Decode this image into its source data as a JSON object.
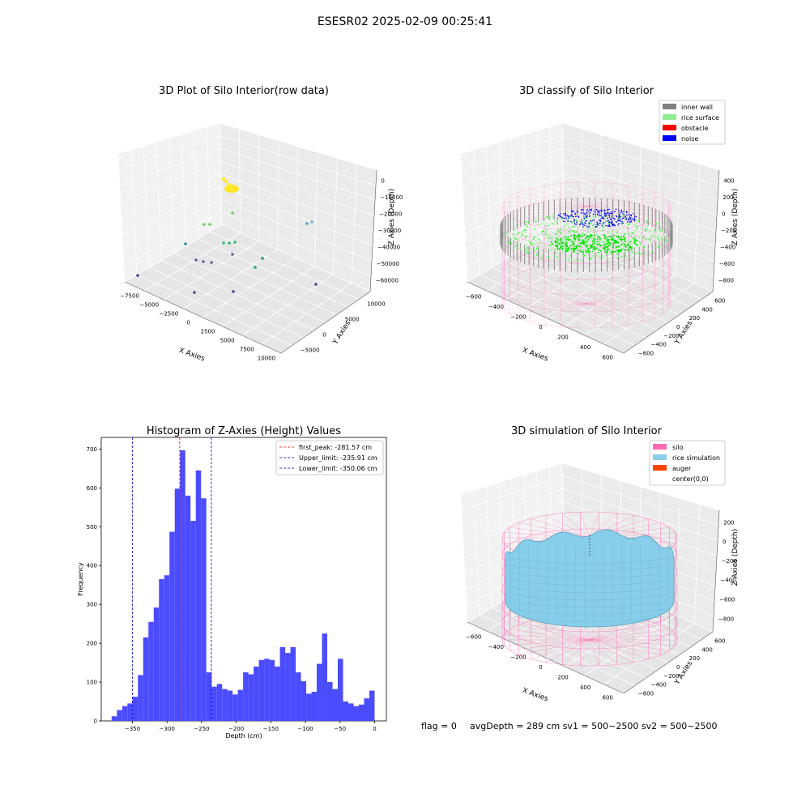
{
  "suptitle": "ESESR02 2025-02-09 00:25:41",
  "footer": {
    "flag": "flag = 0",
    "stats": "avgDepth = 289 cm  sv1 = 500~2500  sv2 = 500~2500"
  },
  "colors": {
    "hist_bar": "#4b4bff",
    "first_peak_line": "#ff0000",
    "limit_line": "#0000cc",
    "inner_wall": "#808080",
    "rice_surface": "#90ee90",
    "obstacle": "#ff0000",
    "noise": "#0000ff",
    "silo": "#ff69b4",
    "rice_simulation": "#87ceeb",
    "auger": "#ff4500"
  },
  "chart_data": [
    {
      "type": "scatter3d",
      "title": "3D Plot of Silo Interior(row data)",
      "xlabel": "X Axies",
      "ylabel": "Y Axies",
      "zlabel": "Z Axies (Depth)",
      "x_ticks": [
        "−7500",
        "−5000",
        "−2500",
        "0",
        "2500",
        "5000",
        "7500",
        "10000"
      ],
      "y_ticks": [
        "−5000",
        "0",
        "5000",
        "10000"
      ],
      "z_ticks": [
        "0",
        "−10000",
        "−20000",
        "−30000",
        "−40000",
        "−50000",
        "−60000"
      ],
      "grid": true
    },
    {
      "type": "scatter3d",
      "title": "3D classify of Silo Interior",
      "xlabel": "X Axies",
      "ylabel": "Y Axies",
      "zlabel": "Z Axies (Depth)",
      "x_ticks": [
        "−600",
        "−400",
        "−200",
        "0",
        "200",
        "400",
        "600"
      ],
      "y_ticks": [
        "−600",
        "−400",
        "−200",
        "0",
        "200",
        "400",
        "600"
      ],
      "z_ticks": [
        "400",
        "200",
        "0",
        "−200",
        "−400",
        "−600",
        "−800"
      ],
      "legend": [
        "inner wall",
        "rice surface",
        "obstacle",
        "noise"
      ],
      "legend_position": "top-right",
      "grid": true
    },
    {
      "type": "bar",
      "title": "Histogram of Z-Axies (Height) Values",
      "xlabel": "Depth (cm)",
      "ylabel": "Frequency",
      "xlim": [
        -395,
        17
      ],
      "ylim": [
        0,
        730
      ],
      "x_ticks": [
        -350,
        -300,
        -250,
        -200,
        -150,
        -100,
        -50,
        0
      ],
      "x_tick_labels": [
        "−350",
        "−300",
        "−250",
        "−200",
        "−150",
        "−100",
        "−50",
        "0"
      ],
      "y_ticks": [
        0,
        100,
        200,
        300,
        400,
        500,
        600,
        700
      ],
      "y_tick_labels": [
        "0",
        "100",
        "200",
        "300",
        "400",
        "500",
        "600",
        "700"
      ],
      "bin_start": -380,
      "bin_width": 7.6,
      "values": [
        12,
        28,
        38,
        45,
        62,
        118,
        215,
        255,
        292,
        365,
        375,
        487,
        598,
        697,
        580,
        515,
        645,
        573,
        125,
        88,
        95,
        82,
        78,
        68,
        80,
        125,
        120,
        140,
        157,
        160,
        157,
        140,
        190,
        175,
        190,
        125,
        102,
        70,
        75,
        147,
        225,
        100,
        82,
        160,
        50,
        45,
        38,
        42,
        58,
        78
      ],
      "lines": [
        {
          "label": "first_peak: -281.57 cm",
          "x": -281.57,
          "color": "#ff0000"
        },
        {
          "label": "Upper_limit: -235.91 cm",
          "x": -235.91,
          "color": "#0000cc"
        },
        {
          "label": "Lower_limit: -350.06 cm",
          "x": -350.06,
          "color": "#0000cc"
        }
      ],
      "legend_position": "top-right"
    },
    {
      "type": "surface3d",
      "title": "3D simulation of Silo Interior",
      "xlabel": "X Axies",
      "ylabel": "Y Axies",
      "zlabel": "Z Axies (Depth)",
      "x_ticks": [
        "−600",
        "−400",
        "−200",
        "0",
        "200",
        "400",
        "600"
      ],
      "y_ticks": [
        "−600",
        "−400",
        "−200",
        "0",
        "200",
        "400",
        "600"
      ],
      "z_ticks": [
        "200",
        "0",
        "−200",
        "−400",
        "−600",
        "−800"
      ],
      "legend": [
        "silo",
        "rice simulation",
        "auger",
        "center(0,0)"
      ],
      "legend_position": "top-right",
      "grid": true
    }
  ]
}
